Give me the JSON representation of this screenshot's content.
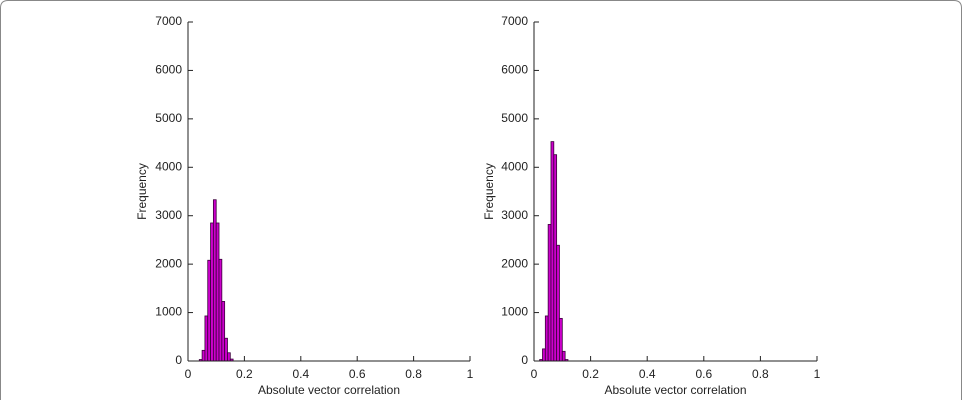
{
  "chart_data": [
    {
      "type": "histogram",
      "xlabel": "Absolute vector correlation",
      "ylabel": "Frequency",
      "color": "#cc00cc",
      "bins": [
        0.04,
        0.05,
        0.06,
        0.07,
        0.08,
        0.09,
        0.1,
        0.11,
        0.12,
        0.13,
        0.14,
        0.15,
        0.16
      ],
      "values": [
        30,
        220,
        930,
        2080,
        2850,
        3330,
        2850,
        2100,
        1230,
        470,
        170,
        40
      ],
      "xlim": [
        0,
        1
      ],
      "xticks": [
        0,
        0.2,
        0.4,
        0.6,
        0.8,
        1
      ],
      "ylim": [
        0,
        7000
      ],
      "yticks": [
        0,
        1000,
        2000,
        3000,
        4000,
        5000,
        6000,
        7000
      ]
    },
    {
      "type": "histogram",
      "xlabel": "Absolute vector correlation",
      "ylabel": "Frequency",
      "color": "#cc00cc",
      "bins": [
        0.02,
        0.03,
        0.04,
        0.05,
        0.06,
        0.07,
        0.08,
        0.09,
        0.1,
        0.11,
        0.12
      ],
      "values": [
        30,
        250,
        930,
        2820,
        4530,
        4260,
        2390,
        880,
        200,
        30
      ],
      "xlim": [
        0,
        1
      ],
      "xticks": [
        0,
        0.2,
        0.4,
        0.6,
        0.8,
        1
      ],
      "ylim": [
        0,
        7000
      ],
      "yticks": [
        0,
        1000,
        2000,
        3000,
        4000,
        5000,
        6000,
        7000
      ]
    }
  ]
}
